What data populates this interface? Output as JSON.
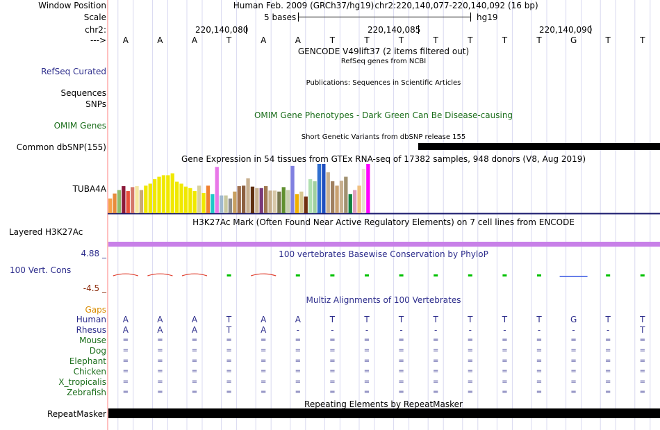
{
  "header": {
    "window_position_label": "Window Position",
    "scale_label": "Scale",
    "chr_label": "chr2:",
    "strand_label": "--->",
    "assembly": "Human Feb. 2009 (GRCh37/hg19)",
    "position": "chr2:220,140,077-220,140,092 (16 bp)",
    "scale_text": "5 bases",
    "db": "hg19",
    "coords": [
      "220,140,080",
      "220,140,085",
      "220,140,090"
    ]
  },
  "sequence": [
    "A",
    "A",
    "A",
    "T",
    "A",
    "A",
    "T",
    "T",
    "T",
    "T",
    "T",
    "T",
    "T",
    "G",
    "T",
    "T"
  ],
  "tracks": {
    "gencode_title": "GENCODE V49lift37 (2 items filtered out)",
    "refseq_subtitle": "RefSeq genes from NCBI",
    "refseq_label": "RefSeq Curated",
    "publications_title": "Publications: Sequences in Scientific Articles",
    "sequences_label": "Sequences",
    "snps_label": "SNPs",
    "omim_title": "OMIM Gene Phenotypes - Dark Green Can Be Disease-causing",
    "omim_label": "OMIM Genes",
    "dbsnp_title": "Short Genetic Variants from dbSNP release 155",
    "dbsnp_label": "Common dbSNP(155)",
    "gtex_title": "Gene Expression in 54 tissues from GTEx RNA-seq of 17382 samples, 948 donors (V8, Aug 2019)",
    "gtex_gene": "TUBA4A",
    "h3k27_title": "H3K27Ac Mark (Often Found Near Active Regulatory Elements) on 7 cell lines from ENCODE",
    "h3k27_label": "Layered H3K27Ac",
    "cons_title": "100 vertebrates Basewise Conservation by PhyloP",
    "cons_max": "4.88 _",
    "cons_label": "100 Vert. Cons",
    "cons_min": "-4.5 _",
    "multiz_title": "Multiz Alignments of 100 Vertebrates",
    "gaps_label": "Gaps",
    "rmsk_title": "Repeating Elements by RepeatMasker",
    "rmsk_label": "RepeatMasker"
  },
  "alignment": [
    {
      "species": "Human",
      "bases": [
        "A",
        "A",
        "A",
        "T",
        "A",
        "A",
        "T",
        "T",
        "T",
        "T",
        "T",
        "T",
        "T",
        "G",
        "T",
        "T"
      ]
    },
    {
      "species": "Rhesus",
      "bases": [
        "A",
        "A",
        "A",
        "T",
        "A",
        "-",
        "-",
        "-",
        "-",
        "-",
        "-",
        "-",
        "-",
        "-",
        "-",
        "T"
      ]
    },
    {
      "species": "Mouse",
      "bases": [
        "=",
        "=",
        "=",
        "=",
        "=",
        "=",
        "=",
        "=",
        "=",
        "=",
        "=",
        "=",
        "=",
        "=",
        "=",
        "="
      ]
    },
    {
      "species": "Dog",
      "bases": [
        "=",
        "=",
        "=",
        "=",
        "=",
        "=",
        "=",
        "=",
        "=",
        "=",
        "=",
        "=",
        "=",
        "=",
        "=",
        "="
      ]
    },
    {
      "species": "Elephant",
      "bases": [
        "=",
        "=",
        "=",
        "=",
        "=",
        "=",
        "=",
        "=",
        "=",
        "=",
        "=",
        "=",
        "=",
        "=",
        "=",
        "="
      ]
    },
    {
      "species": "Chicken",
      "bases": [
        "=",
        "=",
        "=",
        "=",
        "=",
        "=",
        "=",
        "=",
        "=",
        "=",
        "=",
        "=",
        "=",
        "=",
        "=",
        "="
      ]
    },
    {
      "species": "X_tropicalis",
      "bases": [
        "=",
        "=",
        "=",
        "=",
        "=",
        "=",
        "=",
        "=",
        "=",
        "=",
        "=",
        "=",
        "=",
        "=",
        "=",
        "="
      ]
    },
    {
      "species": "Zebrafish",
      "bases": [
        "=",
        "=",
        "=",
        "=",
        "=",
        "=",
        "=",
        "=",
        "=",
        "=",
        "=",
        "=",
        "=",
        "=",
        "=",
        "="
      ]
    }
  ],
  "gtex_colors": [
    "#f7a24c",
    "#e78c3c",
    "#8fbc6a",
    "#8b1a3a",
    "#e8503a",
    "#d4786a",
    "#f5e6a0",
    "#c8a878",
    "#f0e800",
    "#f0e800",
    "#f0e800",
    "#f0e800",
    "#f0e800",
    "#f0e800",
    "#f0e800",
    "#f0e800",
    "#f0e800",
    "#f0e800",
    "#f0e800",
    "#f0e800",
    "#d8d0a0",
    "#f0e800",
    "#f08030",
    "#20c8c8",
    "#e878e8",
    "#a0b8d0",
    "#c8c8a0",
    "#8c8c8c",
    "#c8a060",
    "#a07050",
    "#8c6040",
    "#c8b090",
    "#603010",
    "#c8b090",
    "#7a3a7a",
    "#a07850",
    "#c8b090",
    "#d8c8a8",
    "#7a7a50",
    "#609030",
    "#c8d0b0",
    "#8080e0",
    "#f0b000",
    "#d8c890",
    "#703010",
    "#b0e0b0",
    "#a0d0a0",
    "#3070d0",
    "#2050c0",
    "#c8b090",
    "#a08060",
    "#c8a070",
    "#c8b090",
    "#a09070",
    "#108040",
    "#e0a0c0",
    "#f0c080",
    "#e8e0d0",
    "#ff00ff"
  ],
  "gtex_values": [
    0.3,
    0.4,
    0.47,
    0.55,
    0.45,
    0.53,
    0.55,
    0.47,
    0.56,
    0.6,
    0.69,
    0.74,
    0.77,
    0.77,
    0.81,
    0.64,
    0.6,
    0.54,
    0.51,
    0.45,
    0.56,
    0.41,
    0.56,
    0.39,
    0.94,
    0.36,
    0.36,
    0.3,
    0.44,
    0.55,
    0.56,
    0.71,
    0.54,
    0.51,
    0.51,
    0.55,
    0.46,
    0.46,
    0.44,
    0.53,
    0.47,
    0.96,
    0.39,
    0.44,
    0.34,
    0.69,
    0.65,
    1.0,
    1.0,
    0.83,
    0.65,
    0.56,
    0.66,
    0.74,
    0.39,
    0.47,
    0.56,
    0.9,
    1.0
  ],
  "cons_values": [
    1.2,
    1.2,
    1.2,
    0.0,
    1.2,
    0.0,
    0.0,
    0.0,
    0.0,
    0.0,
    0.0,
    0.0,
    0.0,
    -0.4,
    0.0,
    0.0
  ],
  "colors": {
    "label_blue": "#2d2d8c",
    "label_green": "#1b6e1b",
    "gaps_orange": "#d98c00",
    "h3k27_purple": "#c880e8",
    "cons_red": "#e04030",
    "cons_green": "#00c000",
    "cons_blue": "#3050e0",
    "black_track": "#000000",
    "divider_blue": "#1a1a6e",
    "guide_line": "#d8d8f0"
  }
}
